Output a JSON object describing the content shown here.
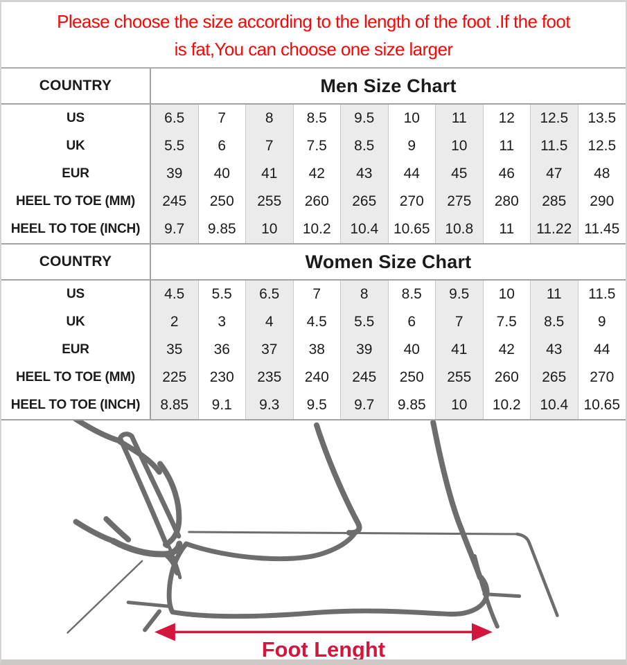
{
  "notice": {
    "line1": "Please choose the size according to the length of the foot .If the foot",
    "line2": "is fat,You can choose one size larger"
  },
  "men": {
    "corner": "COUNTRY",
    "title": "Men Size Chart",
    "rows": [
      {
        "label": "US",
        "values": [
          "6.5",
          "7",
          "8",
          "8.5",
          "9.5",
          "10",
          "11",
          "12",
          "12.5",
          "13.5"
        ]
      },
      {
        "label": "UK",
        "values": [
          "5.5",
          "6",
          "7",
          "7.5",
          "8.5",
          "9",
          "10",
          "11",
          "11.5",
          "12.5"
        ]
      },
      {
        "label": "EUR",
        "values": [
          "39",
          "40",
          "41",
          "42",
          "43",
          "44",
          "45",
          "46",
          "47",
          "48"
        ]
      },
      {
        "label": "HEEL TO TOE (MM)",
        "values": [
          "245",
          "250",
          "255",
          "260",
          "265",
          "270",
          "275",
          "280",
          "285",
          "290"
        ]
      },
      {
        "label": "HEEL TO TOE (INCH)",
        "values": [
          "9.7",
          "9.85",
          "10",
          "10.2",
          "10.4",
          "10.65",
          "10.8",
          "11",
          "11.22",
          "11.45"
        ]
      }
    ]
  },
  "women": {
    "corner": "COUNTRY",
    "title": "Women Size Chart",
    "rows": [
      {
        "label": "US",
        "values": [
          "4.5",
          "5.5",
          "6.5",
          "7",
          "8",
          "8.5",
          "9.5",
          "10",
          "11",
          "11.5"
        ]
      },
      {
        "label": "UK",
        "values": [
          "2",
          "3",
          "4",
          "4.5",
          "5.5",
          "6",
          "7",
          "7.5",
          "8.5",
          "9"
        ]
      },
      {
        "label": "EUR",
        "values": [
          "35",
          "36",
          "37",
          "38",
          "39",
          "40",
          "41",
          "42",
          "43",
          "44"
        ]
      },
      {
        "label": "HEEL TO TOE (MM)",
        "values": [
          "225",
          "230",
          "235",
          "240",
          "245",
          "250",
          "255",
          "260",
          "265",
          "270"
        ]
      },
      {
        "label": "HEEL TO TOE (INCH)",
        "values": [
          "8.85",
          "9.1",
          "9.3",
          "9.5",
          "9.7",
          "9.85",
          "10",
          "10.2",
          "10.4",
          "10.65"
        ]
      }
    ]
  },
  "diagram": {
    "arrow_label": "Foot Lenght"
  },
  "colors": {
    "notice_red": "#f90606",
    "arrow_crimson": "#d4163c",
    "sketch_gray": "#6d6d6d",
    "column_shade": "#ebebeb",
    "grid_strong": "#a2a2a2",
    "grid_light": "#c9c9c9"
  }
}
